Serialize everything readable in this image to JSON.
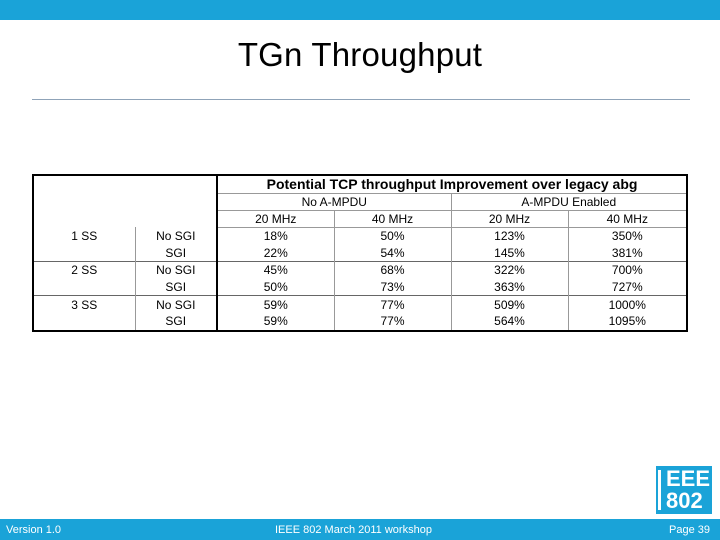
{
  "slide": {
    "title": "TGn Throughput"
  },
  "table": {
    "main_header": "Potential TCP throughput Improvement over legacy abg",
    "groups": [
      "No A-MPDU",
      "A-MPDU Enabled"
    ],
    "bandwidths": [
      "20 MHz",
      "40 MHz",
      "20 MHz",
      "40 MHz"
    ],
    "rows": [
      {
        "ss": "1 SS",
        "sgi": "No SGI",
        "values": [
          "18%",
          "50%",
          "123%",
          "350%"
        ]
      },
      {
        "ss": "",
        "sgi": "SGI",
        "values": [
          "22%",
          "54%",
          "145%",
          "381%"
        ]
      },
      {
        "ss": "2 SS",
        "sgi": "No SGI",
        "values": [
          "45%",
          "68%",
          "322%",
          "700%"
        ]
      },
      {
        "ss": "",
        "sgi": "SGI",
        "values": [
          "50%",
          "73%",
          "363%",
          "727%"
        ]
      },
      {
        "ss": "3 SS",
        "sgi": "No SGI",
        "values": [
          "59%",
          "77%",
          "509%",
          "1000%"
        ]
      },
      {
        "ss": "",
        "sgi": "SGI",
        "values": [
          "59%",
          "77%",
          "564%",
          "1095%"
        ]
      }
    ]
  },
  "logo": {
    "line1": "EEE",
    "line2": "802"
  },
  "footer": {
    "left": "Version 1.0",
    "center": "IEEE 802 March 2011 workshop",
    "right": "Page 39"
  },
  "colors": {
    "accent": "#1aa3d8"
  }
}
